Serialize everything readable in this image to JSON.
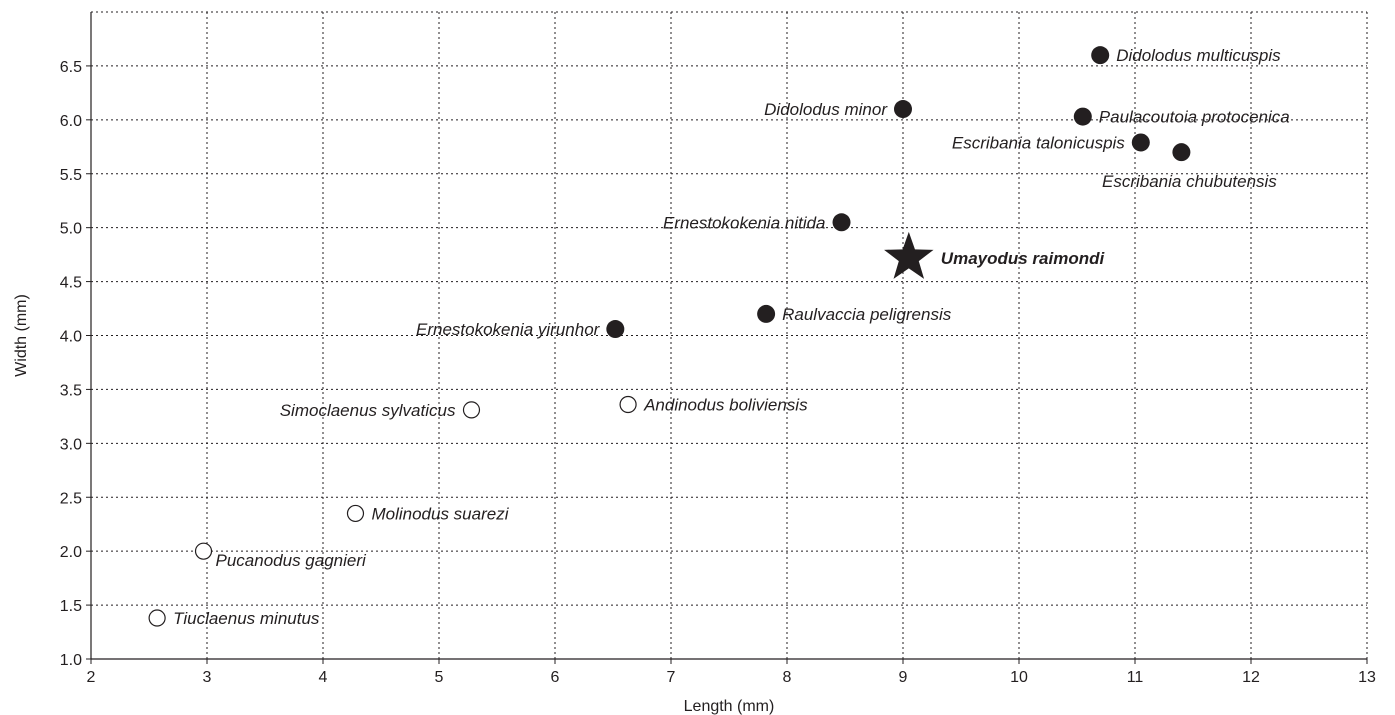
{
  "chart_data": {
    "type": "scatter",
    "title": "",
    "xlabel": "Length (mm)",
    "ylabel": "Width (mm)",
    "xlim": [
      2,
      13
    ],
    "ylim": [
      1.0,
      7.0
    ],
    "xticks": [
      2,
      3,
      4,
      5,
      6,
      7,
      8,
      9,
      10,
      11,
      12,
      13
    ],
    "yticks": [
      "1.0",
      "1.5",
      "2.0",
      "2.5",
      "3.0",
      "3.5",
      "4.0",
      "4.5",
      "5.0",
      "5.5",
      "6.0",
      "6.5"
    ],
    "grid": true,
    "points": [
      {
        "label": "Didolodus multicuspis",
        "x": 10.7,
        "y": 6.6,
        "marker": "filled-circle",
        "label_side": "right"
      },
      {
        "label": "Didolodus minor",
        "x": 9.0,
        "y": 6.1,
        "marker": "filled-circle",
        "label_side": "left"
      },
      {
        "label": "Paulacoutoia protocenica",
        "x": 10.55,
        "y": 6.03,
        "marker": "filled-circle",
        "label_side": "right"
      },
      {
        "label": "Escribania talonicuspis",
        "x": 11.05,
        "y": 5.79,
        "marker": "filled-circle",
        "label_side": "left"
      },
      {
        "label": "Escribania chubutensis",
        "x": 11.4,
        "y": 5.7,
        "marker": "filled-circle",
        "label_side": "below"
      },
      {
        "label": "Ernestokokenia nitida",
        "x": 8.47,
        "y": 5.05,
        "marker": "filled-circle",
        "label_side": "left"
      },
      {
        "label": "Umayodus raimondi",
        "x": 9.05,
        "y": 4.72,
        "marker": "star",
        "label_side": "right",
        "bold": true
      },
      {
        "label": "Raulvaccia peligrensis",
        "x": 7.82,
        "y": 4.2,
        "marker": "filled-circle",
        "label_side": "right"
      },
      {
        "label": "Ernestokokenia yirunhor",
        "x": 6.52,
        "y": 4.06,
        "marker": "filled-circle",
        "label_side": "left"
      },
      {
        "label": "Simoclaenus sylvaticus",
        "x": 5.28,
        "y": 3.31,
        "marker": "open-circle",
        "label_side": "left"
      },
      {
        "label": "Andinodus boliviensis",
        "x": 6.63,
        "y": 3.36,
        "marker": "open-circle",
        "label_side": "right"
      },
      {
        "label": "Molinodus suarezi",
        "x": 4.28,
        "y": 2.35,
        "marker": "open-circle",
        "label_side": "right"
      },
      {
        "label": "Pucanodus gagnieri",
        "x": 2.97,
        "y": 2.0,
        "marker": "open-circle",
        "label_side": "below-right"
      },
      {
        "label": "Tiuclaenus minutus",
        "x": 2.57,
        "y": 1.38,
        "marker": "open-circle",
        "label_side": "right"
      }
    ]
  },
  "colors": {
    "ink": "#231f20",
    "background": "#ffffff"
  }
}
